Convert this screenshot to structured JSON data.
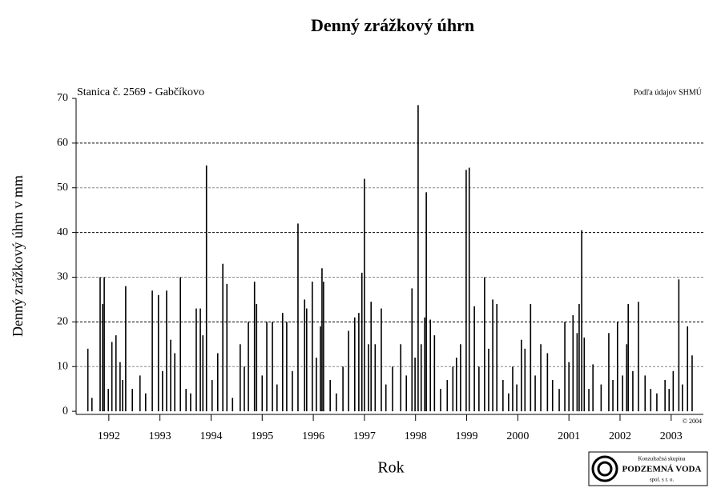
{
  "chart_data": {
    "type": "bar",
    "title": "Denný zrážkový úhrn",
    "subtitle": "Stanica č. 2569 - Gabčíkovo",
    "source": "Podľa údajov SHMÚ",
    "copyright": "© 2004",
    "xlabel": "Rok",
    "ylabel": "Denný zrážkový úhrn v mm",
    "logo": {
      "line1": "Konzultačná skupina",
      "line2": "PODZEMNÁ VODA",
      "line3": "spol. s r. o."
    },
    "color": "#000000",
    "grid": true,
    "xlim": [
      1991.86,
      2004.13
    ],
    "ylim": [
      -0.7,
      70
    ],
    "yticks": [
      0,
      10,
      20,
      30,
      40,
      50,
      60,
      70
    ],
    "xticks": [
      {
        "value": 1992.5,
        "label": "1992"
      },
      {
        "value": 1993.5,
        "label": "1993"
      },
      {
        "value": 1994.5,
        "label": "1994"
      },
      {
        "value": 1995.5,
        "label": "1995"
      },
      {
        "value": 1996.5,
        "label": "1996"
      },
      {
        "value": 1997.5,
        "label": "1997"
      },
      {
        "value": 1998.5,
        "label": "1998"
      },
      {
        "value": 1999.5,
        "label": "1999"
      },
      {
        "value": 2000.5,
        "label": "2000"
      },
      {
        "value": 2001.5,
        "label": "2001"
      },
      {
        "value": 2002.5,
        "label": "2002"
      },
      {
        "value": 2003.5,
        "label": "2003"
      }
    ],
    "x": [
      1992.09,
      1992.17,
      1992.33,
      1992.38,
      1992.41,
      1992.49,
      1992.56,
      1992.64,
      1992.72,
      1992.77,
      1992.83,
      1992.96,
      1993.11,
      1993.22,
      1993.35,
      1993.47,
      1993.55,
      1993.63,
      1993.71,
      1993.79,
      1993.9,
      1994.01,
      1994.1,
      1994.21,
      1994.29,
      1994.34,
      1994.41,
      1994.52,
      1994.63,
      1994.73,
      1994.81,
      1994.92,
      1995.07,
      1995.15,
      1995.23,
      1995.35,
      1995.39,
      1995.5,
      1995.59,
      1995.7,
      1995.79,
      1995.9,
      1995.98,
      1996.09,
      1996.2,
      1996.33,
      1996.37,
      1996.48,
      1996.56,
      1996.64,
      1996.67,
      1996.7,
      1996.83,
      1996.95,
      1997.08,
      1997.19,
      1997.31,
      1997.39,
      1997.45,
      1997.5,
      1997.58,
      1997.63,
      1997.71,
      1997.83,
      1997.92,
      1998.05,
      1998.21,
      1998.32,
      1998.43,
      1998.49,
      1998.55,
      1998.61,
      1998.68,
      1998.71,
      1998.79,
      1998.87,
      1998.99,
      1999.12,
      1999.23,
      1999.3,
      1999.38,
      1999.49,
      1999.55,
      1999.65,
      1999.74,
      1999.85,
      1999.93,
      2000.01,
      2000.09,
      2000.21,
      2000.32,
      2000.4,
      2000.48,
      2000.57,
      2000.64,
      2000.75,
      2000.84,
      2000.95,
      2001.08,
      2001.18,
      2001.31,
      2001.42,
      2001.5,
      2001.58,
      2001.66,
      2001.7,
      2001.75,
      2001.8,
      2001.89,
      2001.97,
      2002.13,
      2002.28,
      2002.36,
      2002.45,
      2002.55,
      2002.63,
      2002.66,
      2002.75,
      2002.86,
      2002.99,
      2003.1,
      2003.22,
      2003.38,
      2003.46,
      2003.54,
      2003.65,
      2003.72,
      2003.82,
      2003.91
    ],
    "values": [
      14,
      3,
      30,
      24,
      30,
      5,
      15.5,
      17,
      11,
      7,
      28,
      5,
      8,
      4,
      27,
      26,
      9,
      27,
      16,
      13,
      30,
      5,
      4,
      23,
      23,
      17,
      55,
      7,
      13,
      33,
      28.5,
      3,
      15,
      10,
      20,
      29,
      24,
      8,
      20,
      20,
      6,
      22,
      20,
      9,
      42,
      25,
      23,
      29,
      12,
      19,
      32,
      29,
      7,
      4,
      10,
      18,
      21,
      22,
      31,
      52,
      15,
      24.5,
      15,
      23,
      6,
      10,
      15,
      8,
      27.5,
      12,
      68.5,
      15,
      21,
      49,
      20.5,
      17,
      5,
      7,
      10,
      12,
      15,
      54,
      54.5,
      23.5,
      10,
      30,
      14,
      25,
      24,
      7,
      4,
      10,
      6,
      16,
      14,
      24,
      8,
      15,
      13,
      7,
      5,
      20,
      11,
      21.5,
      17.5,
      24,
      40.5,
      16.5,
      5,
      10.5,
      6,
      17.5,
      7,
      20,
      8,
      15,
      24,
      9,
      24.5,
      8,
      5,
      4,
      7,
      5,
      9,
      29.5,
      6,
      19,
      12.5
    ]
  }
}
